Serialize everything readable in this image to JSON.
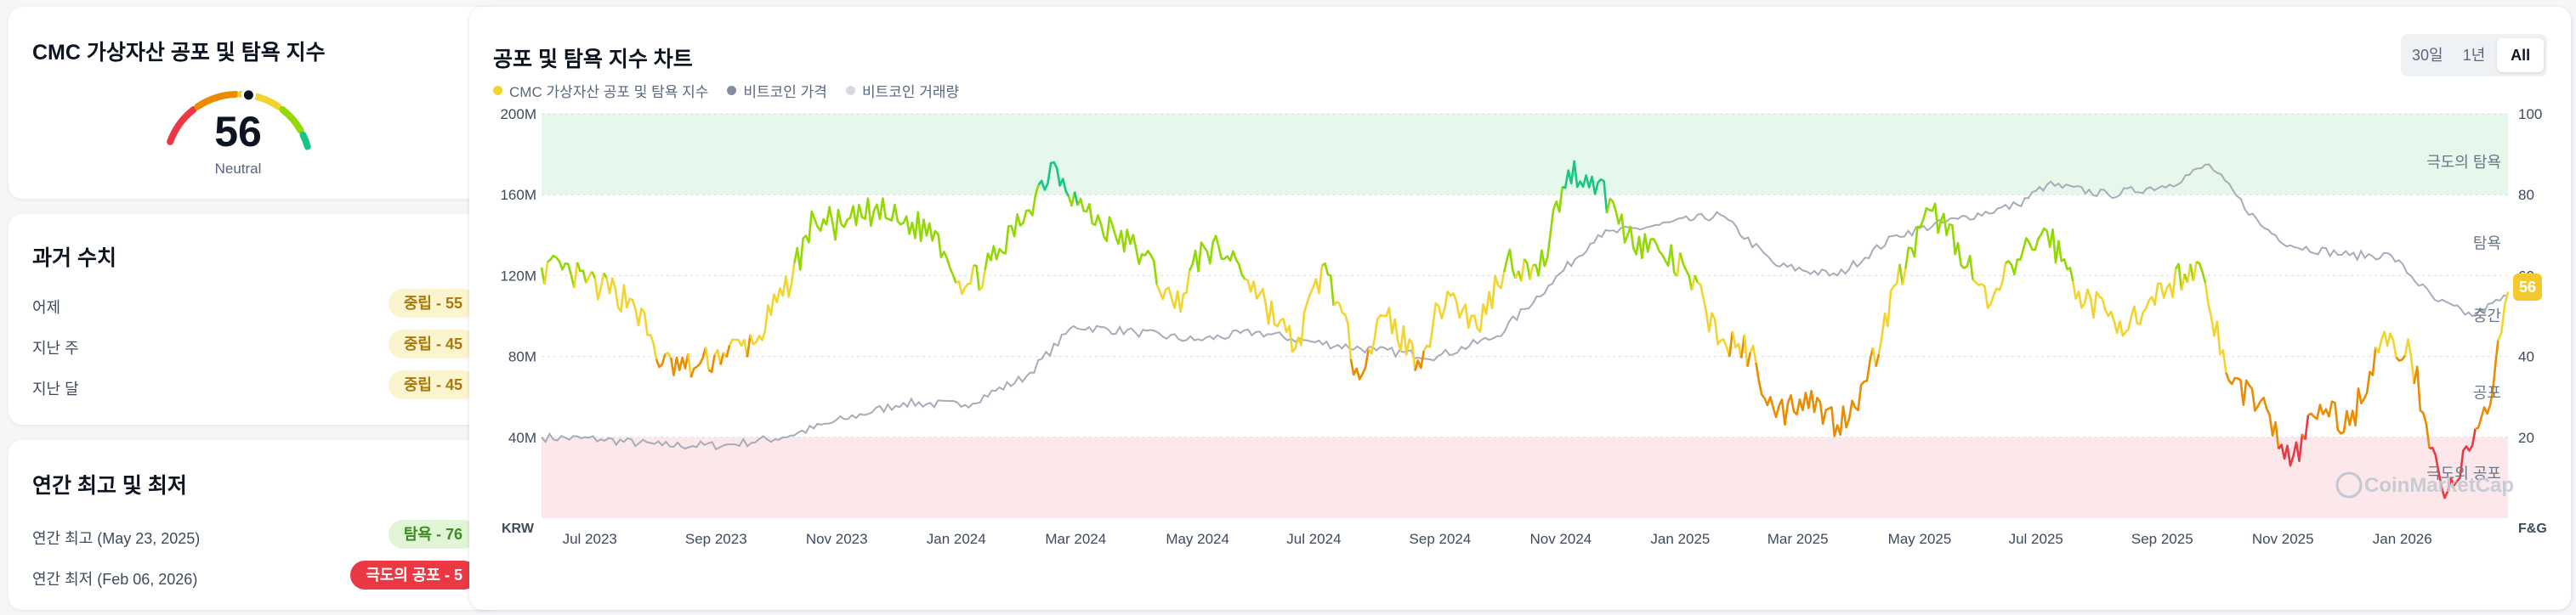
{
  "gauge_card": {
    "title": "CMC 가상자산 공포 및 탐욕 지수",
    "value": "56",
    "label": "Neutral",
    "fraction": 0.56
  },
  "history_card": {
    "title": "과거 수치",
    "rows": [
      {
        "label": "어제",
        "badge": "중립 - 55"
      },
      {
        "label": "지난 주",
        "badge": "중립 - 45"
      },
      {
        "label": "지난 달",
        "badge": "중립 - 45"
      }
    ]
  },
  "yearly_card": {
    "title": "연간 최고 및 최저",
    "high_label": "연간 최고 (May 23, 2025)",
    "high_badge": "탐욕 - 76",
    "low_label": "연간 최저 (Feb 06, 2026)",
    "low_badge": "극도의 공포 - 5"
  },
  "chart_card": {
    "title": "공포 및 탐욕 지수 차트",
    "ranges": [
      "30일",
      "1년",
      "All"
    ],
    "active_range": "All",
    "watermark": "CoinMarketCap",
    "current_badge": "56"
  },
  "colors": {
    "extreme_fear": "#ea3943",
    "fear": "#ea8c00",
    "neutral": "#f3d42f",
    "greed": "#93d900",
    "extreme_greed": "#16c784",
    "price": "#a7acb9",
    "volume": "#dfe2e8"
  },
  "chart_data": {
    "type": "line",
    "title": "공포 및 탐욕 지수 차트",
    "legend": [
      "CMC 가상자산 공포 및 탐욕 지수",
      "비트코인 가격",
      "비트코인 거래량"
    ],
    "legend_position": "top-left",
    "x_ticks": [
      "Jul 2023",
      "Sep 2023",
      "Nov 2023",
      "Jan 2024",
      "Mar 2024",
      "May 2024",
      "Jul 2024",
      "Sep 2024",
      "Nov 2024",
      "Jan 2025",
      "Mar 2025",
      "May 2025",
      "Jul 2025",
      "Sep 2025",
      "Nov 2025",
      "Jan 2026"
    ],
    "x_range": [
      "2023-06-20",
      "2026-03-10"
    ],
    "y_left": {
      "label": "KRW",
      "ticks": [
        "40M",
        "80M",
        "120M",
        "160M",
        "200M"
      ],
      "tick_values": [
        40,
        80,
        120,
        160,
        200
      ],
      "range": [
        0,
        200
      ],
      "unit": "M KRW"
    },
    "y_right": {
      "label": "F&G",
      "ticks": [
        "20",
        "40",
        "60",
        "80",
        "100"
      ],
      "tick_values": [
        20,
        40,
        60,
        80,
        100
      ],
      "range": [
        0,
        100
      ]
    },
    "zones": [
      {
        "name": "극도의 탐욕",
        "from": 80,
        "to": 100
      },
      {
        "name": "탐욕",
        "from": 60,
        "to": 80
      },
      {
        "name": "중간",
        "from": 40,
        "to": 60
      },
      {
        "name": "공포",
        "from": 20,
        "to": 40
      },
      {
        "name": "극도의 공포",
        "from": 0,
        "to": 20
      }
    ],
    "grid": true,
    "series": [
      {
        "name": "CMC 가상자산 공포 및 탐욕 지수",
        "points": [
          [
            "2023-06-20",
            62
          ],
          [
            "2023-07-05",
            60
          ],
          [
            "2023-07-20",
            57
          ],
          [
            "2023-08-05",
            54
          ],
          [
            "2023-08-20",
            38
          ],
          [
            "2023-09-05",
            37
          ],
          [
            "2023-09-20",
            41
          ],
          [
            "2023-10-05",
            43
          ],
          [
            "2023-10-20",
            55
          ],
          [
            "2023-11-05",
            74
          ],
          [
            "2023-11-20",
            72
          ],
          [
            "2023-12-05",
            76
          ],
          [
            "2023-12-20",
            73
          ],
          [
            "2024-01-05",
            71
          ],
          [
            "2024-01-20",
            57
          ],
          [
            "2024-02-05",
            64
          ],
          [
            "2024-02-20",
            76
          ],
          [
            "2024-03-05",
            88
          ],
          [
            "2024-03-20",
            76
          ],
          [
            "2024-04-05",
            70
          ],
          [
            "2024-04-20",
            65
          ],
          [
            "2024-05-05",
            52
          ],
          [
            "2024-05-20",
            67
          ],
          [
            "2024-06-05",
            64
          ],
          [
            "2024-06-20",
            53
          ],
          [
            "2024-07-05",
            42
          ],
          [
            "2024-07-20",
            63
          ],
          [
            "2024-08-05",
            37
          ],
          [
            "2024-08-20",
            50
          ],
          [
            "2024-09-05",
            39
          ],
          [
            "2024-09-20",
            56
          ],
          [
            "2024-10-05",
            47
          ],
          [
            "2024-10-20",
            64
          ],
          [
            "2024-11-05",
            60
          ],
          [
            "2024-11-20",
            86
          ],
          [
            "2024-12-05",
            83
          ],
          [
            "2024-12-20",
            70
          ],
          [
            "2025-01-05",
            66
          ],
          [
            "2025-01-20",
            60
          ],
          [
            "2025-02-05",
            44
          ],
          [
            "2025-02-20",
            41
          ],
          [
            "2025-03-05",
            25
          ],
          [
            "2025-03-20",
            31
          ],
          [
            "2025-04-05",
            23
          ],
          [
            "2025-04-20",
            34
          ],
          [
            "2025-05-05",
            58
          ],
          [
            "2025-05-23",
            76
          ],
          [
            "2025-06-05",
            68
          ],
          [
            "2025-06-20",
            52
          ],
          [
            "2025-07-05",
            64
          ],
          [
            "2025-07-20",
            71
          ],
          [
            "2025-08-05",
            56
          ],
          [
            "2025-08-20",
            50
          ],
          [
            "2025-09-05",
            48
          ],
          [
            "2025-09-20",
            58
          ],
          [
            "2025-10-05",
            63
          ],
          [
            "2025-10-20",
            34
          ],
          [
            "2025-11-05",
            29
          ],
          [
            "2025-11-20",
            13
          ],
          [
            "2025-12-05",
            28
          ],
          [
            "2025-12-20",
            23
          ],
          [
            "2026-01-05",
            44
          ],
          [
            "2026-01-20",
            40
          ],
          [
            "2026-02-06",
            5
          ],
          [
            "2026-02-20",
            18
          ],
          [
            "2026-03-01",
            28
          ],
          [
            "2026-03-05",
            44
          ],
          [
            "2026-03-10",
            56
          ]
        ]
      },
      {
        "name": "비트코인 가격",
        "unit": "M KRW",
        "points": [
          [
            "2023-06-20",
            40
          ],
          [
            "2023-07-20",
            39
          ],
          [
            "2023-08-20",
            36
          ],
          [
            "2023-09-20",
            36
          ],
          [
            "2023-10-20",
            40
          ],
          [
            "2023-11-20",
            49
          ],
          [
            "2023-12-20",
            57
          ],
          [
            "2024-01-20",
            56
          ],
          [
            "2024-02-20",
            70
          ],
          [
            "2024-03-15",
            95
          ],
          [
            "2024-04-15",
            92
          ],
          [
            "2024-05-15",
            88
          ],
          [
            "2024-06-15",
            92
          ],
          [
            "2024-07-15",
            87
          ],
          [
            "2024-08-15",
            83
          ],
          [
            "2024-09-15",
            80
          ],
          [
            "2024-10-15",
            90
          ],
          [
            "2024-11-10",
            115
          ],
          [
            "2024-12-05",
            140
          ],
          [
            "2025-01-05",
            145
          ],
          [
            "2025-02-05",
            150
          ],
          [
            "2025-03-05",
            125
          ],
          [
            "2025-04-05",
            120
          ],
          [
            "2025-05-05",
            140
          ],
          [
            "2025-06-05",
            148
          ],
          [
            "2025-07-05",
            155
          ],
          [
            "2025-07-20",
            165
          ],
          [
            "2025-08-20",
            160
          ],
          [
            "2025-09-20",
            165
          ],
          [
            "2025-10-10",
            175
          ],
          [
            "2025-11-05",
            145
          ],
          [
            "2025-11-20",
            135
          ],
          [
            "2025-12-20",
            130
          ],
          [
            "2026-01-10",
            130
          ],
          [
            "2026-02-01",
            108
          ],
          [
            "2026-02-20",
            100
          ],
          [
            "2026-03-10",
            110
          ]
        ]
      }
    ]
  }
}
